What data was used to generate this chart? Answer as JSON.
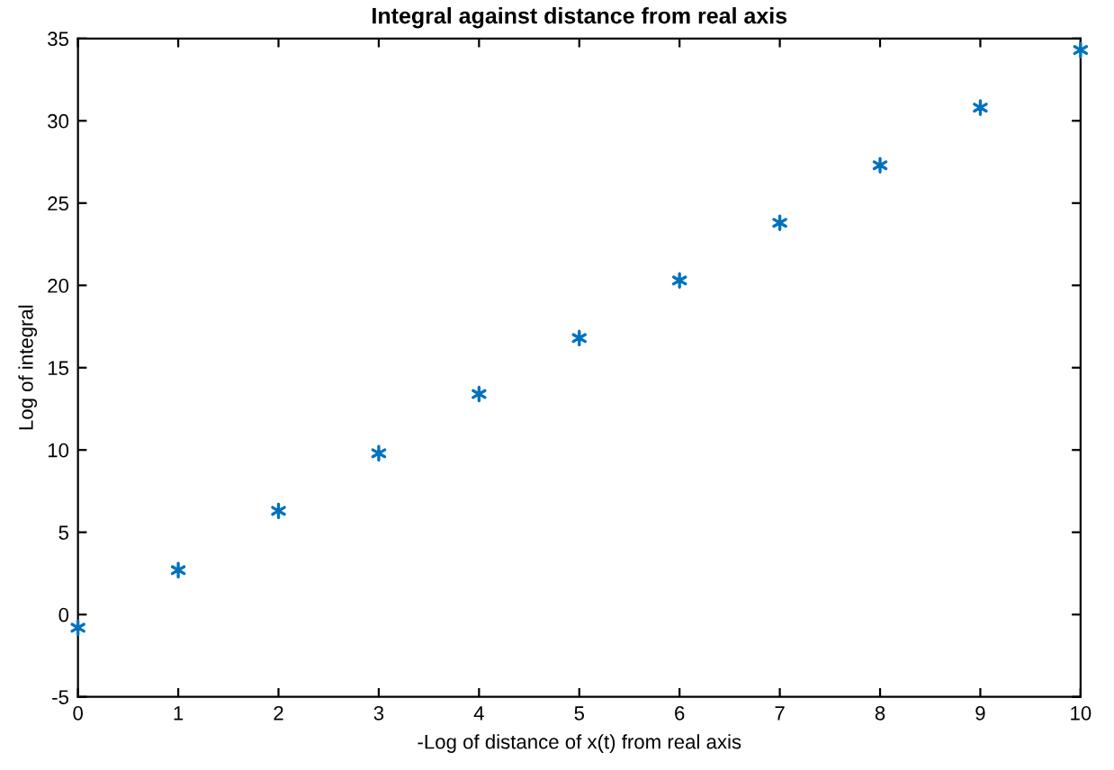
{
  "chart_data": {
    "type": "scatter",
    "title": "Integral against distance from real axis",
    "xlabel": "-Log of distance of x(t) from real axis",
    "ylabel": "Log of integral",
    "x": [
      0,
      1,
      2,
      3,
      4,
      5,
      6,
      7,
      8,
      9,
      10
    ],
    "series": [
      {
        "color": "#0072bd",
        "values": [
          -0.8,
          2.7,
          6.3,
          9.8,
          13.4,
          16.8,
          20.3,
          23.8,
          27.3,
          30.8,
          34.3
        ]
      }
    ],
    "xlim": [
      0,
      10
    ],
    "ylim": [
      -5,
      35
    ],
    "xticks": [
      0,
      1,
      2,
      3,
      4,
      5,
      6,
      7,
      8,
      9,
      10
    ],
    "yticks": [
      -5,
      0,
      5,
      10,
      15,
      20,
      25,
      30,
      35
    ],
    "marker": "cross",
    "grid": false,
    "legend": false
  }
}
